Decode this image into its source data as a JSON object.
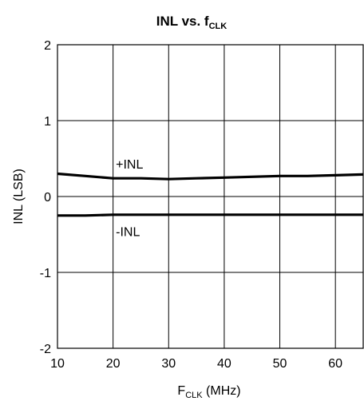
{
  "chart_data": {
    "type": "line",
    "title": {
      "main": "INL vs. f",
      "subscript": "CLK"
    },
    "xlabel": {
      "main": "F",
      "subscript": "CLK",
      "suffix": " (MHz)"
    },
    "ylabel": "INL (LSB)",
    "xlim": [
      10,
      65
    ],
    "ylim": [
      -2,
      2
    ],
    "x_ticks": [
      10,
      20,
      30,
      40,
      50,
      60
    ],
    "y_ticks": [
      -2,
      -1,
      0,
      1,
      2
    ],
    "grid": true,
    "series": [
      {
        "name": "+INL",
        "x": [
          10,
          15,
          20,
          25,
          30,
          35,
          40,
          45,
          50,
          55,
          60,
          65
        ],
        "values": [
          0.3,
          0.27,
          0.24,
          0.24,
          0.23,
          0.24,
          0.25,
          0.26,
          0.27,
          0.27,
          0.28,
          0.29
        ]
      },
      {
        "name": "-INL",
        "x": [
          10,
          15,
          20,
          25,
          30,
          35,
          40,
          45,
          50,
          55,
          60,
          65
        ],
        "values": [
          -0.25,
          -0.25,
          -0.24,
          -0.24,
          -0.24,
          -0.24,
          -0.24,
          -0.24,
          -0.24,
          -0.24,
          -0.24,
          -0.24
        ]
      }
    ],
    "annotations": [
      {
        "text": "+INL",
        "x": 20.5,
        "y": 0.43
      },
      {
        "text": "-INL",
        "x": 20.5,
        "y": -0.46
      }
    ],
    "colors": {
      "line": "#000000",
      "grid": "#000000"
    }
  }
}
